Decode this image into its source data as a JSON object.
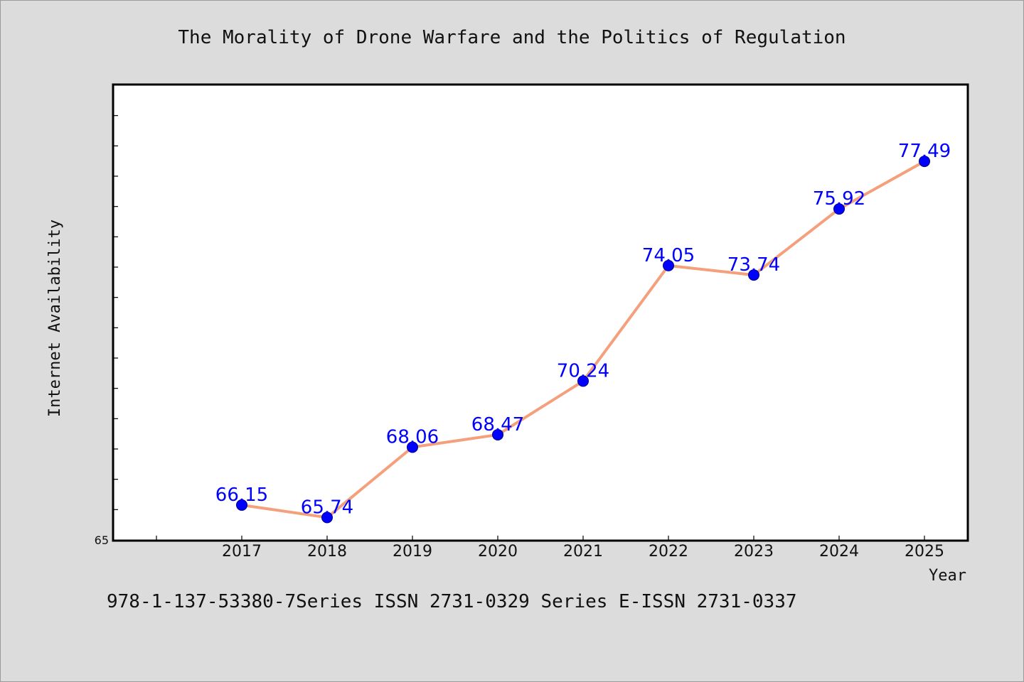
{
  "chart_data": {
    "type": "line",
    "title": "The Morality of Drone Warfare and the Politics of Regulation",
    "xlabel": "Year",
    "ylabel": "Internet Availability",
    "categories": [
      "2017",
      "2018",
      "2019",
      "2020",
      "2021",
      "2022",
      "2023",
      "2024",
      "2025"
    ],
    "series": [
      {
        "values": [
          66.15,
          65.74,
          68.06,
          68.47,
          70.24,
          74.05,
          73.74,
          75.92,
          77.49
        ],
        "labels": [
          "66.15",
          "65.74",
          "68.06",
          "68.47",
          "70.24",
          "74.05",
          "73.74",
          "75.92",
          "77.49"
        ]
      }
    ],
    "ylim": [
      65,
      80
    ],
    "yticks_labeled": [
      "65"
    ],
    "grid": false,
    "legend": "none",
    "colors": {
      "line": "#f4a07c",
      "marker": "#0000ff",
      "data_label": "#0000ff",
      "plot_background": "#ffffff",
      "page_background": "#dcdcdc"
    }
  },
  "footer": {
    "text": "978-1-137-53380-7Series ISSN 2731-0329 Series E-ISSN 2731-0337"
  }
}
